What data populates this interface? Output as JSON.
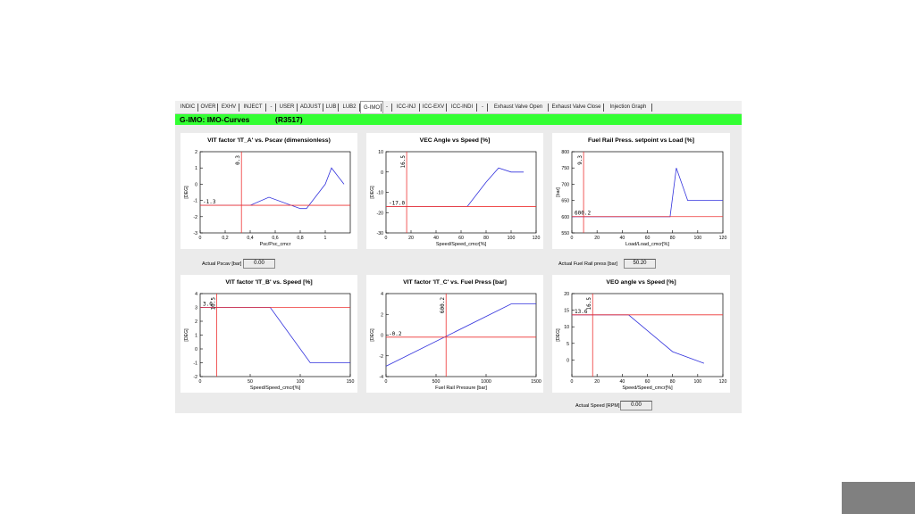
{
  "tabs": [
    {
      "label": "INDIC"
    },
    {
      "label": "OVER"
    },
    {
      "label": "EXHV"
    },
    {
      "label": "INJECT"
    },
    {
      "label": "-"
    },
    {
      "label": "USER"
    },
    {
      "label": "ADJUST"
    },
    {
      "label": "LUB"
    },
    {
      "label": "LUB2"
    },
    {
      "label": "G-IMO",
      "active": true
    },
    {
      "label": "-"
    },
    {
      "label": "ICC-INJ"
    },
    {
      "label": "ICC-EXV"
    },
    {
      "label": "ICC-INDI"
    },
    {
      "label": "-"
    },
    {
      "label": "Exhaust Valve Open"
    },
    {
      "label": "Exhaust Valve Close"
    },
    {
      "label": "Injection Graph"
    }
  ],
  "header": {
    "title": "G-IMO: IMO-Curves",
    "code": "(R3517)"
  },
  "colors": {
    "accent": "#33ff33",
    "curve": "#3333dd",
    "marker": "#ee3333"
  },
  "readouts": {
    "pscav": {
      "label": "Actual Pscav [bar]",
      "value": "0.00"
    },
    "fuel_rail": {
      "label": "Actual Fuel Rail press [bar]",
      "value": "50.20"
    },
    "speed": {
      "label": "Actual Speed [RPM]",
      "value": "0.00"
    }
  },
  "chart_data": [
    {
      "id": "vit_a",
      "type": "line",
      "title": "VIT factor 'IT_A' vs. Pscav (dimensionless)",
      "xlabel": "Psc/Psc_cmcr",
      "ylabel": "[DEG]",
      "xlim": [
        0,
        1.2
      ],
      "ylim": [
        -3,
        2
      ],
      "xticks": [
        0,
        0.2,
        0.4,
        0.6,
        0.8,
        1
      ],
      "xtick_labels": [
        "0",
        "0,2",
        "0,4",
        "0,6",
        "0,8",
        "1"
      ],
      "yticks": [
        -3,
        -2,
        -1,
        0,
        1,
        2
      ],
      "ytick_labels": [
        "-3",
        "-2",
        "-1",
        "0",
        "1",
        "2"
      ],
      "series": [
        {
          "name": "IT_A",
          "x": [
            0,
            0.4,
            0.55,
            0.8,
            0.85,
            1.0,
            1.05,
            1.15
          ],
          "y": [
            -1.3,
            -1.3,
            -0.8,
            -1.5,
            -1.5,
            0,
            1.0,
            0
          ]
        }
      ],
      "marker_x": 0.33,
      "marker_y": -1.3,
      "marker_x_label": "0.3",
      "marker_y_label": "-1.3"
    },
    {
      "id": "vec",
      "type": "line",
      "title": "VEC Angle vs Speed [%]",
      "xlabel": "Speed/Speed_cmcr[%]",
      "ylabel": "[DEG]",
      "xlim": [
        0,
        120
      ],
      "ylim": [
        -30,
        10
      ],
      "xticks": [
        0,
        20,
        40,
        60,
        80,
        100,
        120
      ],
      "xtick_labels": [
        "0",
        "20",
        "40",
        "60",
        "80",
        "100",
        "120"
      ],
      "yticks": [
        -30,
        -20,
        -10,
        0,
        10
      ],
      "ytick_labels": [
        "-30",
        "-20",
        "-10",
        "0",
        "10"
      ],
      "series": [
        {
          "name": "VEC",
          "x": [
            0,
            65,
            80,
            90,
            100,
            110
          ],
          "y": [
            -17,
            -17,
            -5,
            2,
            0,
            0
          ]
        }
      ],
      "marker_x": 16.5,
      "marker_y": -17,
      "marker_x_label": "16.5",
      "marker_y_label": "-17.0"
    },
    {
      "id": "fuel_rail",
      "type": "line",
      "title": "Fuel Rail Press. setpoint vs Load [%]",
      "xlabel": "Load/Load_cmcr[%]",
      "ylabel": "[bar]",
      "xlim": [
        0,
        120
      ],
      "ylim": [
        550,
        800
      ],
      "xticks": [
        0,
        20,
        40,
        60,
        80,
        100,
        120
      ],
      "xtick_labels": [
        "0",
        "20",
        "40",
        "60",
        "80",
        "100",
        "120"
      ],
      "yticks": [
        550,
        600,
        650,
        700,
        750,
        800
      ],
      "ytick_labels": [
        "550",
        "600",
        "650",
        "700",
        "750",
        "800"
      ],
      "series": [
        {
          "name": "Setpoint",
          "x": [
            0,
            78,
            83,
            92,
            120
          ],
          "y": [
            600,
            600,
            750,
            650,
            650
          ]
        }
      ],
      "marker_x": 9.3,
      "marker_y": 600.2,
      "marker_x_label": "9.3",
      "marker_y_label": "600.2"
    },
    {
      "id": "vit_b",
      "type": "line",
      "title": "VIT factor 'IT_B' vs. Speed [%]",
      "xlabel": "Speed/Speed_cmcr[%]",
      "ylabel": "[DEG]",
      "xlim": [
        0,
        150
      ],
      "ylim": [
        -2,
        4
      ],
      "xticks": [
        0,
        50,
        100,
        150
      ],
      "xtick_labels": [
        "0",
        "50",
        "100",
        "150"
      ],
      "yticks": [
        -2,
        -1,
        0,
        1,
        2,
        3,
        4
      ],
      "ytick_labels": [
        "-2",
        "-1",
        "0",
        "1",
        "2",
        "3",
        "4"
      ],
      "series": [
        {
          "name": "IT_B",
          "x": [
            0,
            70,
            110,
            150
          ],
          "y": [
            3,
            3,
            -1,
            -1
          ]
        }
      ],
      "marker_x": 16.5,
      "marker_y": 3.0,
      "marker_x_label": "16.5",
      "marker_y_label": "3.0"
    },
    {
      "id": "vit_c",
      "type": "line",
      "title": "VIT factor 'IT_C' vs. Fuel Press [bar]",
      "xlabel": "Fuel Rail Pressure [bar]",
      "ylabel": "[DEG]",
      "xlim": [
        0,
        1500
      ],
      "ylim": [
        -4,
        4
      ],
      "xticks": [
        0,
        500,
        1000,
        1500
      ],
      "xtick_labels": [
        "0",
        "500",
        "1000",
        "1500"
      ],
      "yticks": [
        -4,
        -2,
        0,
        2,
        4
      ],
      "ytick_labels": [
        "-4",
        "-2",
        "0",
        "2",
        "4"
      ],
      "series": [
        {
          "name": "IT_C",
          "x": [
            0,
            1250,
            1500
          ],
          "y": [
            -3,
            3,
            3
          ]
        }
      ],
      "marker_x": 600.2,
      "marker_y": -0.2,
      "marker_x_label": "600.2",
      "marker_y_label": "-0.2"
    },
    {
      "id": "veo",
      "type": "line",
      "title": "VEO angle vs Speed [%]",
      "xlabel": "Speed/Speed_cmcr[%]",
      "ylabel": "[DEG]",
      "xlim": [
        0,
        120
      ],
      "ylim": [
        -5,
        20
      ],
      "xticks": [
        0,
        20,
        40,
        60,
        80,
        100,
        120
      ],
      "xtick_labels": [
        "0",
        "20",
        "40",
        "60",
        "80",
        "100",
        "120"
      ],
      "yticks": [
        0,
        5,
        10,
        15,
        20
      ],
      "ytick_labels": [
        "0",
        "5",
        "10",
        "15",
        "20"
      ],
      "series": [
        {
          "name": "VEO",
          "x": [
            0,
            45,
            80,
            105
          ],
          "y": [
            13.6,
            13.6,
            2.5,
            -1
          ]
        }
      ],
      "marker_x": 16.5,
      "marker_y": 13.6,
      "marker_x_label": "16.5",
      "marker_y_label": "13.6"
    }
  ]
}
